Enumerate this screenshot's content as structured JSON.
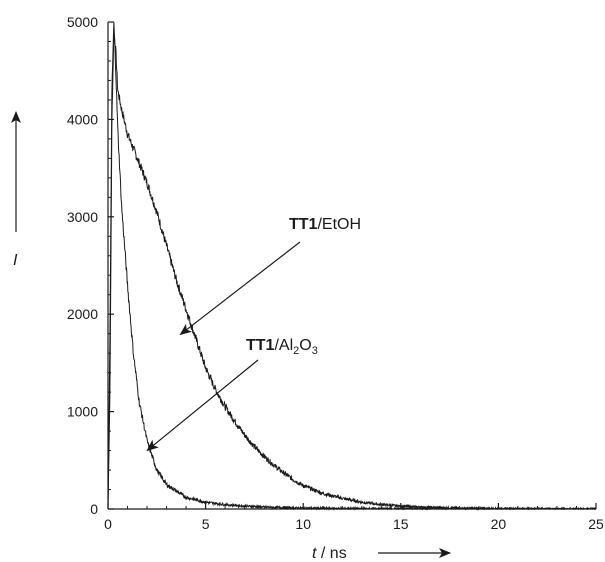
{
  "chart_data": {
    "type": "line",
    "title": "",
    "xlabel": {
      "var": "t",
      "unit": " / ns"
    },
    "ylabel": "I",
    "xlim": [
      0,
      25
    ],
    "ylim": [
      0,
      5000
    ],
    "x_ticks": [
      0,
      5,
      10,
      15,
      20,
      25
    ],
    "y_ticks": [
      0,
      1000,
      2000,
      3000,
      4000,
      5000
    ],
    "grid": false,
    "legend": "none",
    "series": [
      {
        "points": [
          [
            0,
            0
          ],
          [
            0.1,
            1200
          ],
          [
            0.2,
            4000
          ],
          [
            0.3,
            4900
          ],
          [
            0.4,
            4700
          ],
          [
            0.5,
            4300
          ],
          [
            0.7,
            4100
          ],
          [
            1,
            3850
          ],
          [
            1.5,
            3600
          ],
          [
            2,
            3350
          ],
          [
            2.5,
            3050
          ],
          [
            3,
            2700
          ],
          [
            3.5,
            2350
          ],
          [
            4,
            2050
          ],
          [
            4.5,
            1750
          ],
          [
            5,
            1450
          ],
          [
            5.5,
            1230
          ],
          [
            6,
            1050
          ],
          [
            6.5,
            900
          ],
          [
            7,
            760
          ],
          [
            7.5,
            640
          ],
          [
            8,
            540
          ],
          [
            8.5,
            450
          ],
          [
            9,
            370
          ],
          [
            9.5,
            300
          ],
          [
            10,
            240
          ],
          [
            11,
            160
          ],
          [
            12,
            110
          ],
          [
            13,
            70
          ],
          [
            14,
            45
          ],
          [
            15,
            30
          ],
          [
            16,
            20
          ],
          [
            18,
            10
          ],
          [
            20,
            5
          ],
          [
            22,
            3
          ],
          [
            25,
            2
          ]
        ]
      },
      {
        "points": [
          [
            0,
            0
          ],
          [
            0.1,
            1800
          ],
          [
            0.2,
            4300
          ],
          [
            0.3,
            5000
          ],
          [
            0.4,
            4500
          ],
          [
            0.5,
            3900
          ],
          [
            0.7,
            3100
          ],
          [
            1,
            2300
          ],
          [
            1.3,
            1600
          ],
          [
            1.6,
            1100
          ],
          [
            2,
            700
          ],
          [
            2.5,
            400
          ],
          [
            3,
            250
          ],
          [
            4,
            120
          ],
          [
            5,
            70
          ],
          [
            6,
            45
          ],
          [
            7,
            30
          ],
          [
            8,
            20
          ],
          [
            10,
            10
          ],
          [
            12,
            6
          ],
          [
            15,
            4
          ],
          [
            20,
            2
          ],
          [
            25,
            1
          ]
        ]
      }
    ],
    "annotations": [
      {
        "bold": "TT1",
        "text": "/EtOH",
        "points_to": [
          3.5,
          1750
        ]
      },
      {
        "bold": "TT1",
        "text": "/Al",
        "sub1": "2",
        "mid": "O",
        "sub2": "3",
        "points_to": [
          1.8,
          560
        ]
      }
    ]
  }
}
